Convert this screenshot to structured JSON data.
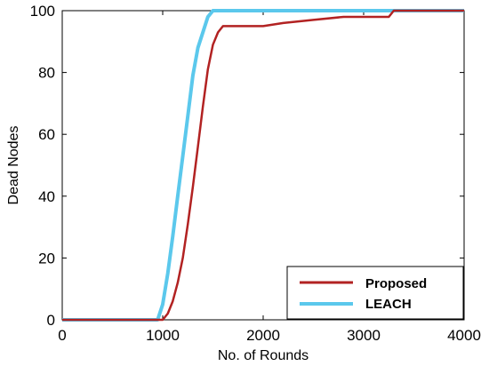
{
  "chart_data": {
    "type": "line",
    "title": "",
    "xlabel": "No. of Rounds",
    "ylabel": "Dead Nodes",
    "xlim": [
      0,
      4000
    ],
    "ylim": [
      0,
      100
    ],
    "xticks": [
      0,
      1000,
      2000,
      3000,
      4000
    ],
    "yticks": [
      0,
      20,
      40,
      60,
      80,
      100
    ],
    "grid": false,
    "legend_position": "bottom-right",
    "series": [
      {
        "name": "Proposed",
        "color": "#b22222",
        "x": [
          0,
          1000,
          1050,
          1100,
          1150,
          1200,
          1250,
          1300,
          1350,
          1400,
          1450,
          1500,
          1550,
          1600,
          1700,
          2000,
          2200,
          2500,
          2800,
          3000,
          3250,
          3300,
          4000
        ],
        "y": [
          0,
          0,
          2,
          6,
          12,
          20,
          31,
          43,
          56,
          69,
          81,
          89,
          93,
          95,
          95,
          95,
          96,
          97,
          98,
          98,
          98,
          100,
          100
        ]
      },
      {
        "name": "LEACH",
        "color": "#5bc8ec",
        "x": [
          0,
          950,
          1000,
          1050,
          1100,
          1150,
          1200,
          1250,
          1300,
          1350,
          1400,
          1450,
          1500,
          1550,
          2000,
          3000,
          4000
        ],
        "y": [
          0,
          0,
          5,
          15,
          27,
          40,
          53,
          66,
          79,
          88,
          93,
          98,
          100,
          100,
          100,
          100,
          100
        ]
      }
    ]
  }
}
